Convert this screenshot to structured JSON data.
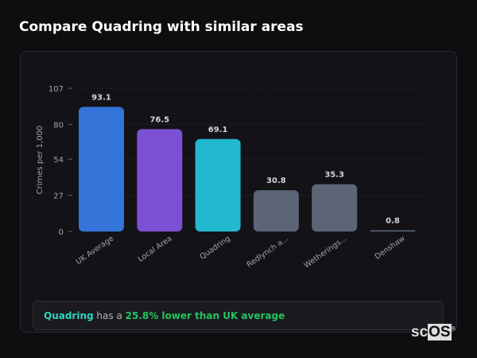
{
  "title": "Compare Quadring with similar areas",
  "chart_data": {
    "type": "bar",
    "title": "",
    "xlabel": "",
    "ylabel": "Crimes per 1,000",
    "ylim": [
      0,
      107
    ],
    "yticks": [
      0,
      27,
      54,
      80,
      107
    ],
    "grid": true,
    "categories": [
      "UK Average",
      "Local Area",
      "Quadring",
      "Redlynch a...",
      "Wetherings...",
      "Denshaw"
    ],
    "values": [
      93.1,
      76.5,
      69.1,
      30.8,
      35.3,
      0.8
    ],
    "data_labels": [
      "93.1",
      "76.5",
      "69.1",
      "30.8",
      "35.3",
      "0.8"
    ],
    "colors": [
      "#3474d8",
      "#7b50d3",
      "#22b8cf",
      "#5b6577",
      "#5b6577",
      "#5b6577"
    ]
  },
  "summary": {
    "place": "Quadring",
    "middle": " has a ",
    "value": "25.8% lower than UK average"
  },
  "logo": {
    "text": "scOS"
  }
}
